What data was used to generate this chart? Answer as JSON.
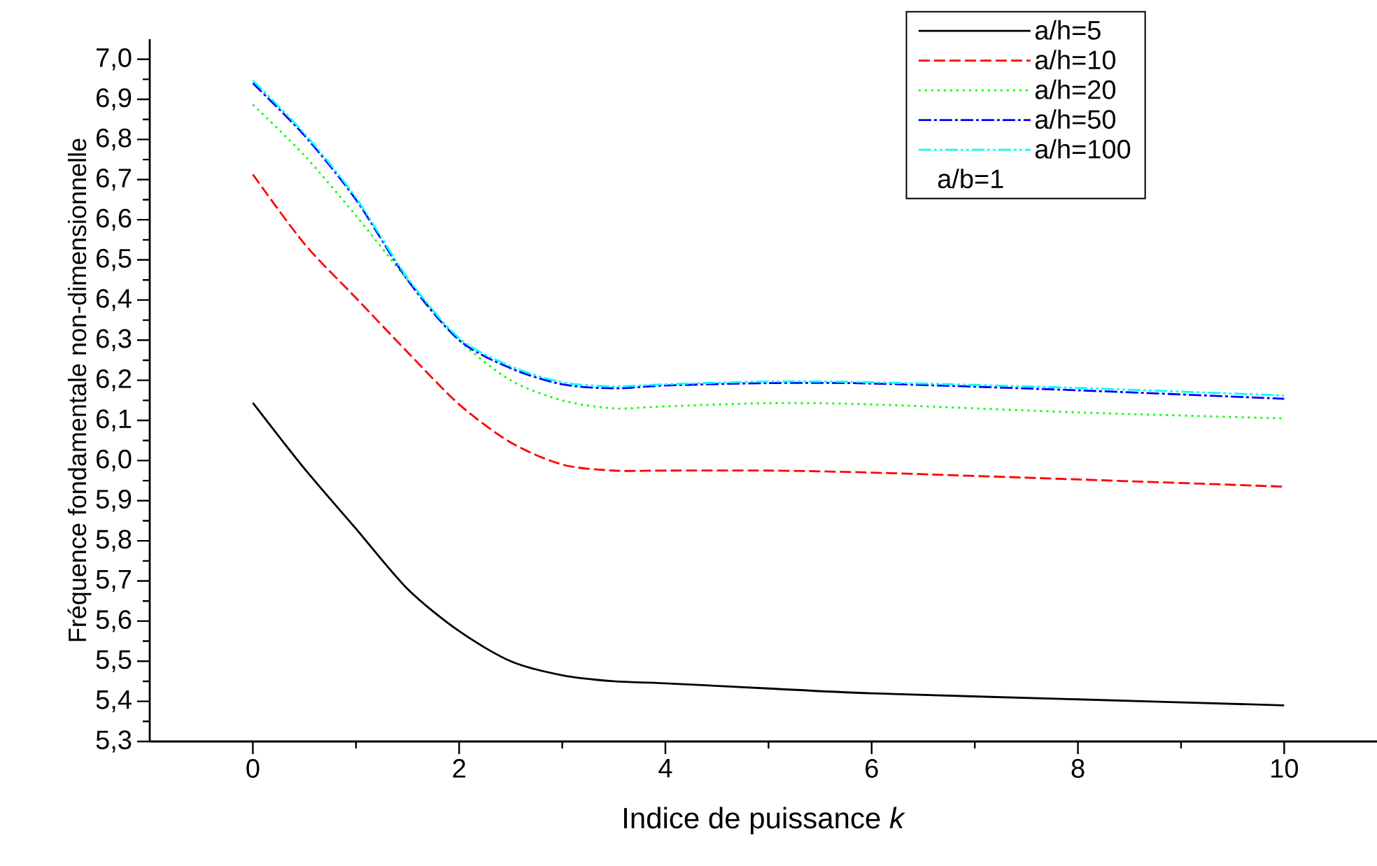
{
  "chart_data": {
    "type": "line",
    "xlabel": "Indice de puissance *k*",
    "ylabel": "Fréquence fondamentale non-dimensionnelle",
    "legend_title": "a/b=1",
    "legend": "top right",
    "grid": false,
    "x": [
      0,
      0.5,
      1,
      1.5,
      2,
      2.5,
      3,
      3.5,
      4,
      5,
      6,
      8,
      10
    ],
    "xlim": [
      -1,
      10.9
    ],
    "xticks": [
      0,
      2,
      4,
      6,
      8,
      10
    ],
    "ylim": [
      5.3,
      7.05
    ],
    "yticks": [
      {
        "value": 5.3,
        "label": "5,3"
      },
      {
        "value": 5.4,
        "label": "5,4"
      },
      {
        "value": 5.5,
        "label": "5,5"
      },
      {
        "value": 5.6,
        "label": "5,6"
      },
      {
        "value": 5.7,
        "label": "5,7"
      },
      {
        "value": 5.8,
        "label": "5,8"
      },
      {
        "value": 5.9,
        "label": "5,9"
      },
      {
        "value": 6.0,
        "label": "6,0"
      },
      {
        "value": 6.1,
        "label": "6,1"
      },
      {
        "value": 6.2,
        "label": "6,2"
      },
      {
        "value": 6.3,
        "label": "6,3"
      },
      {
        "value": 6.4,
        "label": "6,4"
      },
      {
        "value": 6.5,
        "label": "6,5"
      },
      {
        "value": 6.6,
        "label": "6,6"
      },
      {
        "value": 6.7,
        "label": "6,7"
      },
      {
        "value": 6.8,
        "label": "6,8"
      },
      {
        "value": 6.9,
        "label": "6,9"
      },
      {
        "value": 7.0,
        "label": "7,0"
      }
    ],
    "series": [
      {
        "name": "a/h=5",
        "color": "#000000",
        "line_style": "solid",
        "values": [
          6.144,
          5.98,
          5.83,
          5.68,
          5.575,
          5.5,
          5.465,
          5.45,
          5.445,
          5.432,
          5.42,
          5.405,
          5.39
        ]
      },
      {
        "name": "a/h=10",
        "color": "#ff0000",
        "line_style": "dashed",
        "values": [
          6.713,
          6.54,
          6.405,
          6.27,
          6.14,
          6.045,
          5.99,
          5.975,
          5.975,
          5.975,
          5.97,
          5.953,
          5.935
        ]
      },
      {
        "name": "a/h=20",
        "color": "#00ff00",
        "line_style": "dotted",
        "values": [
          6.887,
          6.76,
          6.61,
          6.45,
          6.3,
          6.2,
          6.15,
          6.13,
          6.135,
          6.143,
          6.14,
          6.12,
          6.105
        ]
      },
      {
        "name": "a/h=50",
        "color": "#0000ff",
        "line_style": "dashdot",
        "values": [
          6.94,
          6.81,
          6.65,
          6.45,
          6.3,
          6.23,
          6.19,
          6.18,
          6.187,
          6.193,
          6.192,
          6.175,
          6.154
        ]
      },
      {
        "name": "a/h=100",
        "color": "#00ffff",
        "line_style": "dashdotdot",
        "values": [
          6.947,
          6.815,
          6.655,
          6.455,
          6.305,
          6.235,
          6.195,
          6.185,
          6.19,
          6.197,
          6.195,
          6.181,
          6.162
        ]
      }
    ]
  }
}
